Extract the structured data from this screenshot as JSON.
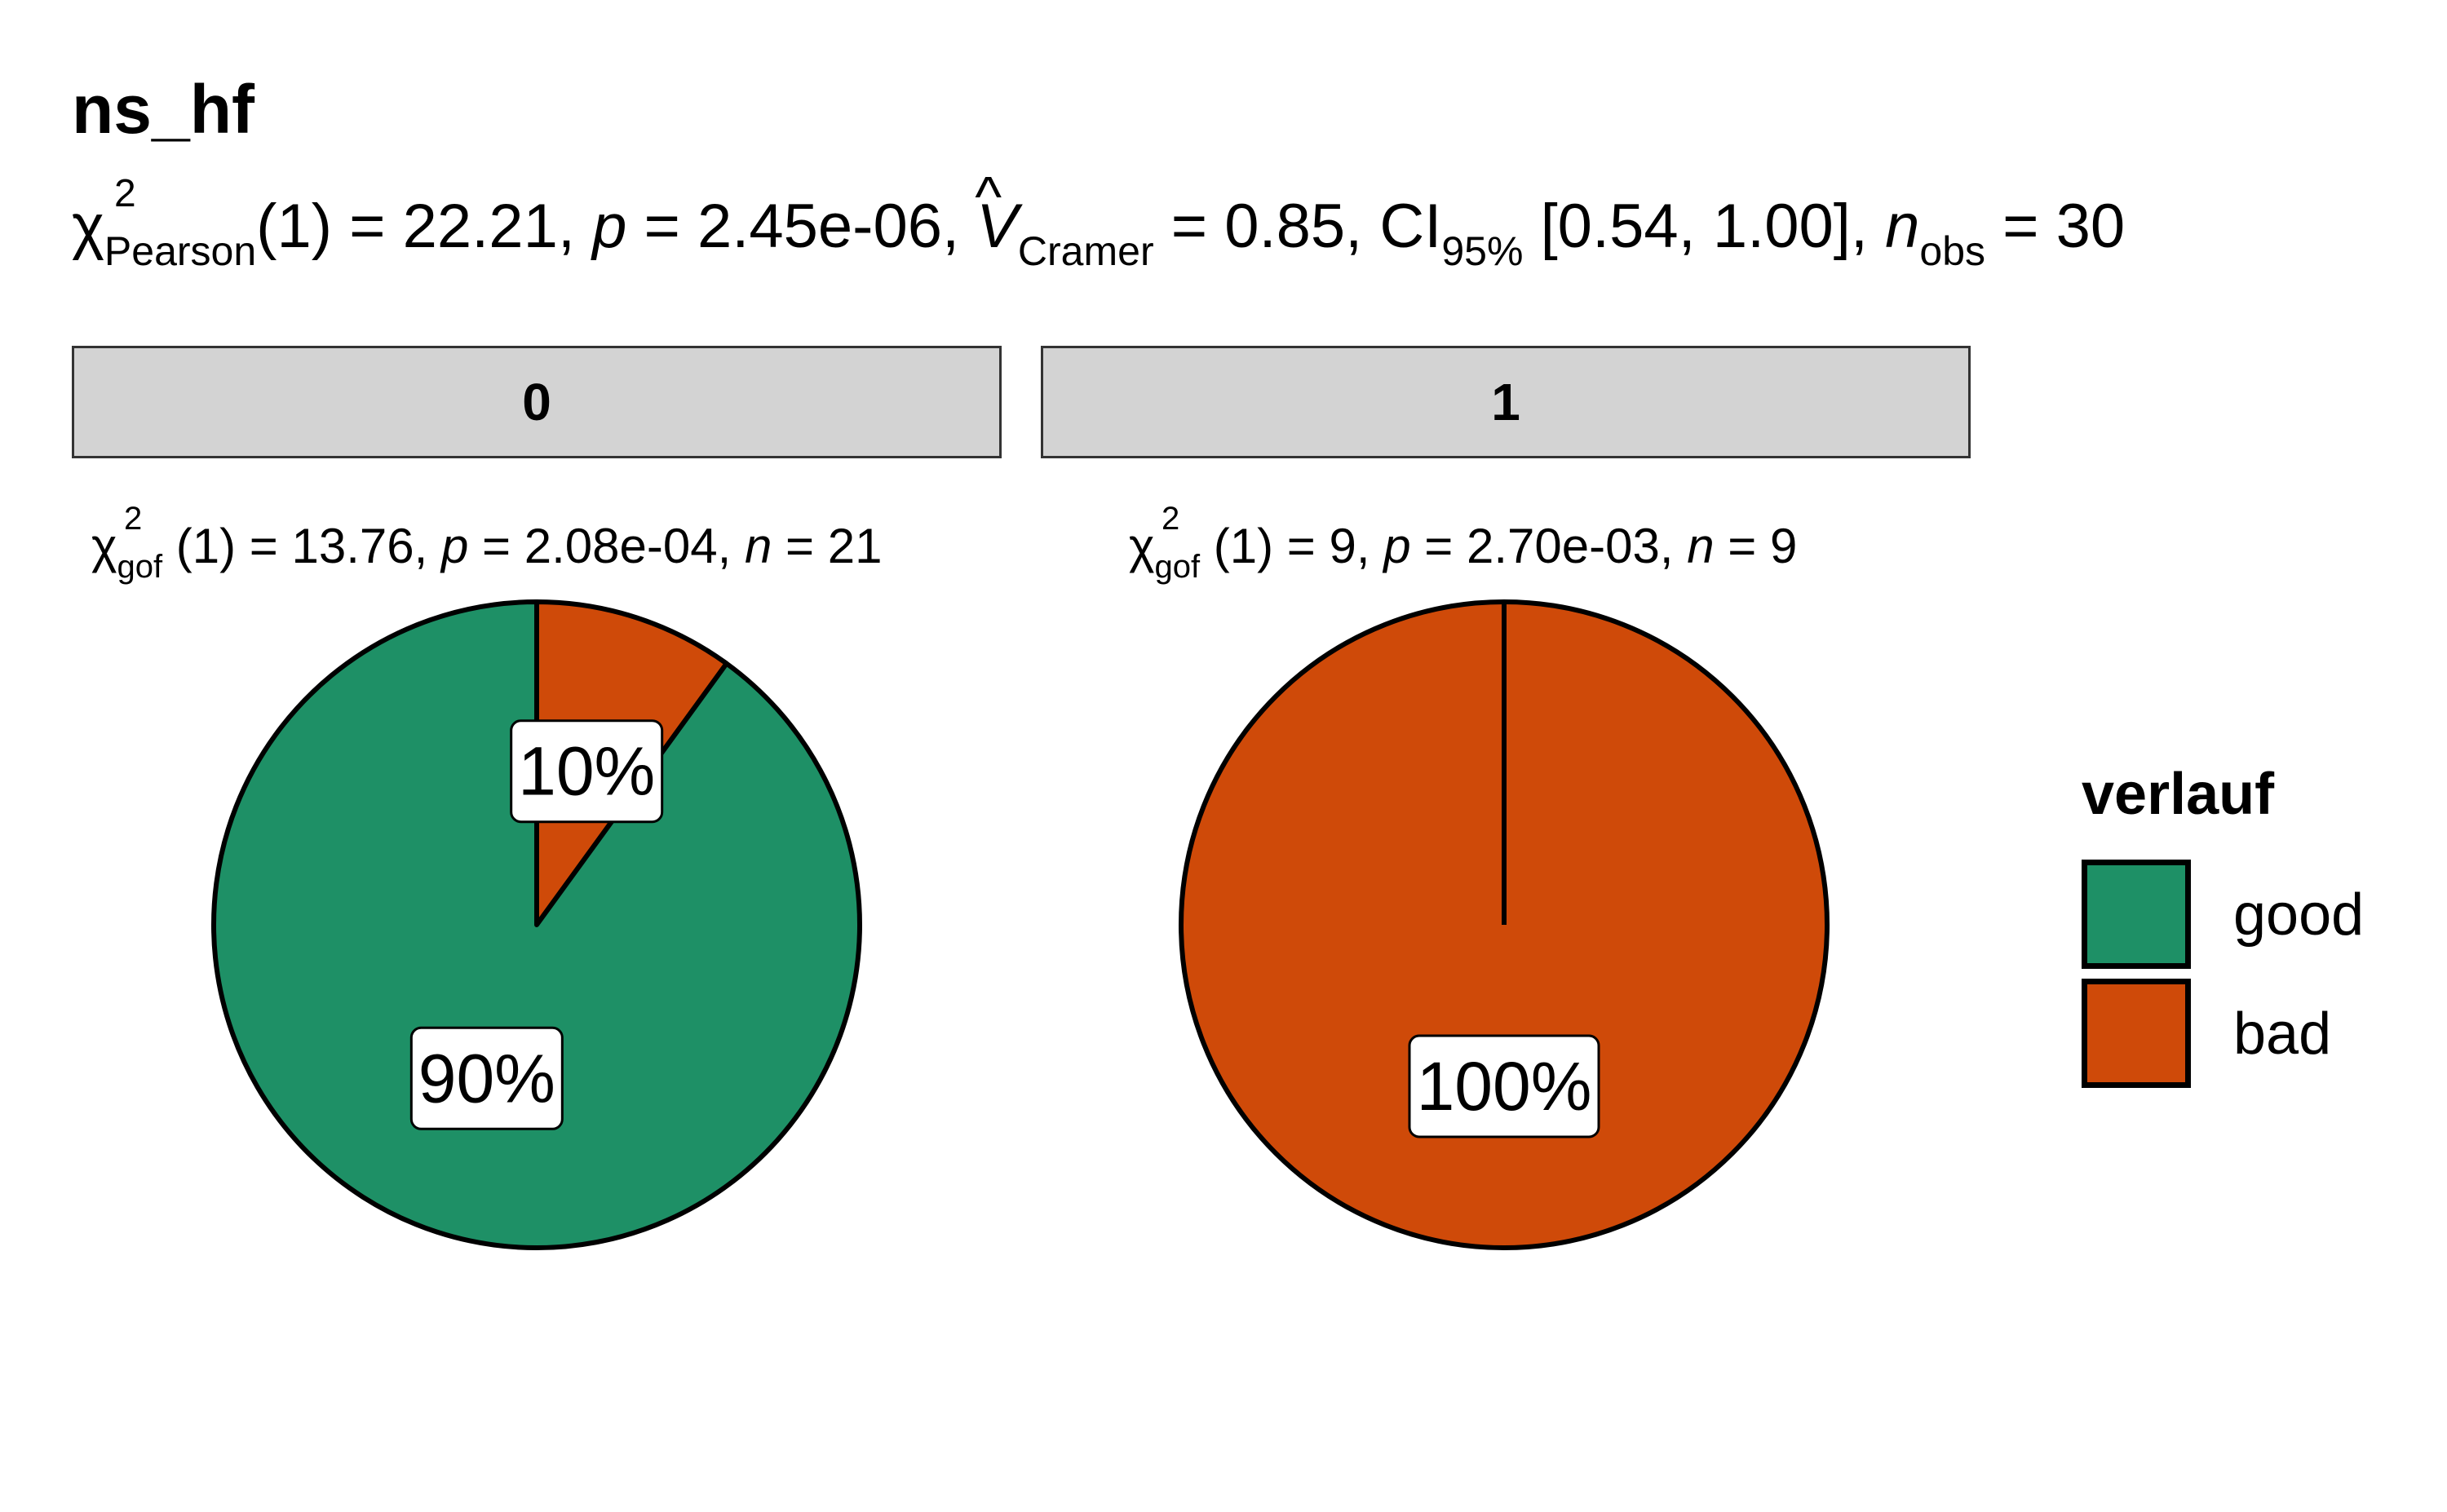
{
  "chart_data": {
    "type": "pie",
    "title": "ns_hf",
    "subtitle": {
      "test": "χ",
      "test_sup": "2",
      "test_sub": "Pearson",
      "df": "(1)",
      "statistic": " = 22.21, ",
      "p_label": "p",
      "p_value": " = 2.45e-06, ",
      "effect_symbol": "V",
      "effect_hat": "^",
      "effect_sub": "Cramer",
      "effect_value": " = 0.85, CI",
      "ci_sub": "95%",
      "ci_value": " [0.54, 1.00], ",
      "n_label": "n",
      "n_sub": "obs",
      "n_value": " = 30"
    },
    "legend": {
      "title": "verlauf",
      "position": "right",
      "entries": [
        {
          "label": "good",
          "color": "#1e9066"
        },
        {
          "label": "bad",
          "color": "#cf4a09"
        }
      ]
    },
    "panels": [
      {
        "strip": "0",
        "stat": {
          "chi": "χ",
          "sup": "2",
          "sub": "gof",
          "df": "(1)",
          "statistic": " = 13.76, ",
          "p_label": "p",
          "p_value": " = 2.08e-04, ",
          "n_label": "n",
          "n_value": " = 21"
        },
        "slices": [
          {
            "category": "bad",
            "value": 10,
            "label": "10%"
          },
          {
            "category": "good",
            "value": 90,
            "label": "90%"
          }
        ]
      },
      {
        "strip": "1",
        "stat": {
          "chi": "χ",
          "sup": "2",
          "sub": "gof",
          "df": "(1)",
          "statistic": " = 9, ",
          "p_label": "p",
          "p_value": " = 2.70e-03, ",
          "n_label": "n",
          "n_value": " = 9"
        },
        "slices": [
          {
            "category": "bad",
            "value": 100,
            "label": "100%"
          }
        ]
      }
    ]
  }
}
